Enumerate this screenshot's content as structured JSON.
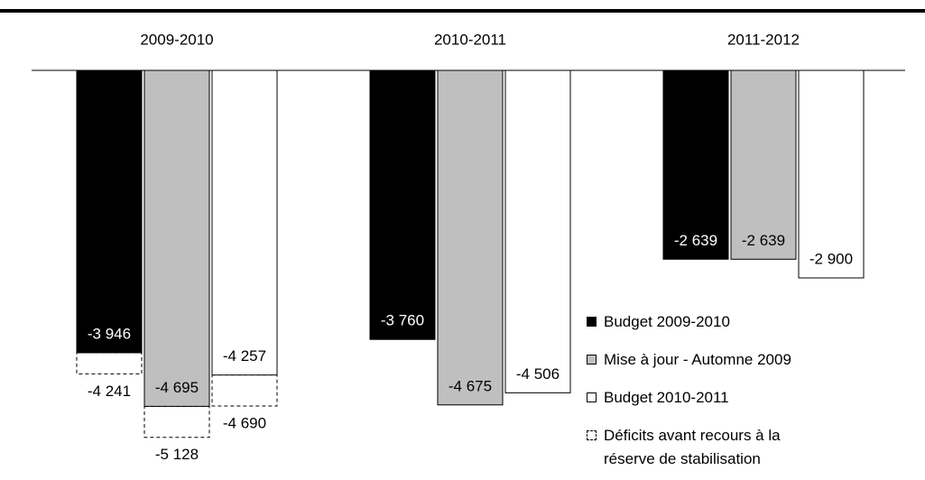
{
  "chart_data": {
    "type": "bar",
    "categories": [
      "2009-2010",
      "2010-2011",
      "2011-2012"
    ],
    "series": [
      {
        "name": "Budget 2009-2010",
        "color": "#000000",
        "values": [
          -3946,
          -3760,
          -2639
        ],
        "value_labels": [
          "-3 946",
          "-3 760",
          "-2 639"
        ]
      },
      {
        "name": "Mise à jour - Automne 2009",
        "color": "#bfbfbf",
        "values": [
          -4695,
          -4675,
          -2639
        ],
        "value_labels": [
          "-4 695",
          "-4 675",
          "-2 639"
        ]
      },
      {
        "name": "Budget 2010-2011",
        "color": "#ffffff",
        "values": [
          -4257,
          -4506,
          -2900
        ],
        "value_labels": [
          "-4 257",
          "-4 506",
          "-2 900"
        ]
      }
    ],
    "before_reserve": {
      "name": "Déficits avant recours à la réserve de stabilisation",
      "values": [
        [
          -4241,
          null,
          null
        ],
        [
          -5128,
          null,
          null
        ],
        [
          -4690,
          null,
          null
        ]
      ],
      "value_labels": [
        [
          "-4 241",
          null,
          null
        ],
        [
          "-5 128",
          null,
          null
        ],
        [
          "-4 690",
          null,
          null
        ]
      ]
    },
    "ylim": [
      -5800,
      0
    ]
  }
}
